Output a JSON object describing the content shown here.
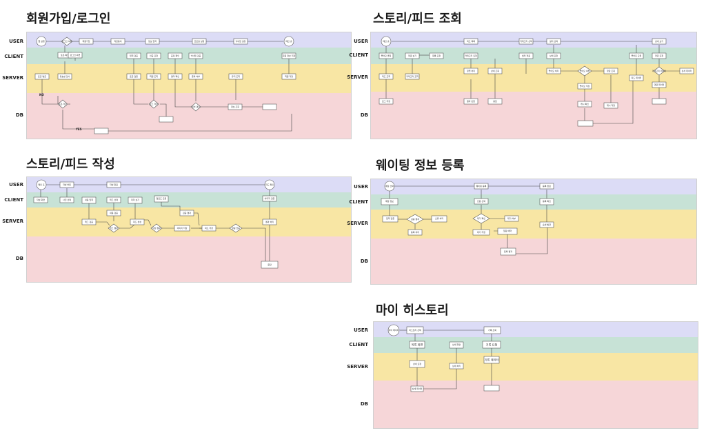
{
  "lanes": {
    "user": "USER",
    "client": "CLIENT",
    "server": "SERVER",
    "db": "DB"
  },
  "diagrams": {
    "signup": {
      "title": "회원가입/로그인",
      "nodes": {
        "n1": "앱 실행",
        "n2": "로그인 여부",
        "n3": "회원가입",
        "n4": "약관동의",
        "n5": "정보 입력",
        "n6": "프로필 설정",
        "n7": "닉네임 설정",
        "n8": "메인 홈",
        "n9": "토큰 확인",
        "n10": "로그인 화면",
        "n11": "입력 검증",
        "n12": "인증 요청",
        "n13": "중복 확인",
        "n14": "닉네임 검증",
        "n15": "회원 정보 저장",
        "n16": "토큰 발급",
        "n17": "유효성 검사",
        "n18": "토큰 검증",
        "n19": "회원 조회",
        "n20": "결과 확인",
        "n21": "중복 여부",
        "n22": "유저 조회",
        "n23": "회원 저장",
        "n24": "토큰 저장",
        "n25": "로그 저장",
        "n26": "세션 갱신",
        "n27": "정보 조회"
      },
      "edges": {
        "no": "NO",
        "yes": "YES"
      }
    },
    "feedview": {
      "title": "스토리/피드 조회",
      "nodes": {
        "n1": "메인 홈",
        "n2": "피드 목록",
        "n3": "카테고리 선택",
        "n4": "필터 선택",
        "n5": "상세 보기",
        "n6": "좋아요 클릭",
        "n7": "댓글 보기",
        "n8": "목록 요청",
        "n9": "카테고리 요청",
        "n10": "필터 적용",
        "n11": "상세 요청",
        "n12": "좋아요 요청",
        "n13": "댓글 요청",
        "n14": "피드 조회",
        "n15": "카테고리 조회",
        "n16": "정렬 처리",
        "n17": "상세 조회",
        "n18": "좋아요 처리",
        "n19": "좋아요 여부",
        "n20": "댓글 조회",
        "n21": "피드 데이터",
        "n22": "카테고리 데이터",
        "n23": "상세 데이터",
        "n24": "좋아요 저장",
        "n25": "댓글 데이터",
        "n26": "로그 저장",
        "n27": "결과 반환",
        "n28": "응답",
        "n29": "캐시 확인",
        "n30": "캐시 저장"
      }
    },
    "feedwrite": {
      "title": "스토리/피드 작성",
      "nodes": {
        "n1": "메인 홈",
        "n2": "작성 버튼",
        "n3": "작성 완료",
        "n4": "피드 확인",
        "n5": "작성 화면",
        "n6": "사진 선택",
        "n7": "내용 입력",
        "n8": "태그 선택",
        "n9": "미리 보기",
        "n10": "업로드 요청",
        "n11": "이미지 검증",
        "n12": "내용 검증",
        "n13": "검증 결과",
        "n14": "태그 검증",
        "n15": "태그 결과",
        "n16": "피드 생성",
        "n17": "작성 결과",
        "n18": "이미지 저장",
        "n19": "피드 저장",
        "n20": "알림 전송",
        "n21": "결과 처리",
        "n22": "응답"
      }
    },
    "waiting": {
      "title": "웨이팅 정보 등록",
      "nodes": {
        "n1": "매장 선택",
        "n2": "웨이팅 등록",
        "n3": "등록 완료",
        "n4": "매장 정보",
        "n5": "인원 선택",
        "n6": "등록 확인",
        "n7": "입력 검증",
        "n8": "검증 결과",
        "n9": "오류 처리",
        "n10": "대기 확인",
        "n11": "대기 여부",
        "n12": "순번 발급",
        "n13": "등록 처리",
        "n14": "대기 저장",
        "n15": "알림 예약",
        "n16": "등록 결과"
      }
    },
    "history": {
      "title": "마이 히스토리",
      "nodes": {
        "n1": "마이 페이지",
        "n2": "히스토리 선택",
        "n3": "기록 조회",
        "n4": "목록 화면",
        "n5": "상세 화면",
        "n6": "기록 요청",
        "n7": "상세 요청",
        "n8": "상세 처리",
        "n9": "기록 데이터",
        "n10": "상세 데이터"
      }
    }
  }
}
